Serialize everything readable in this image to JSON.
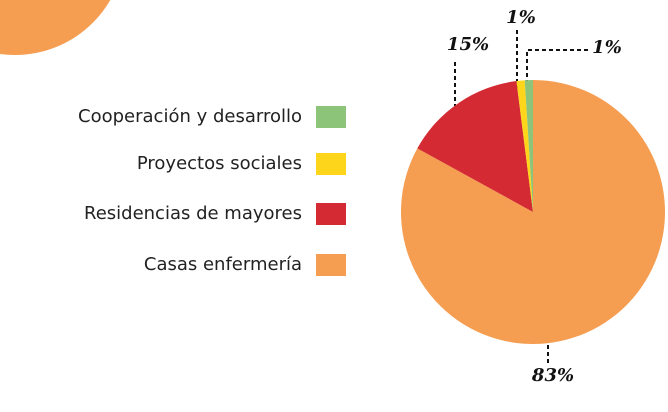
{
  "chart_data": {
    "type": "pie",
    "categories": [
      "Cooperación y desarrollo",
      "Proyectos sociales",
      "Residencias de mayores",
      "Casas enfermería"
    ],
    "values": [
      1,
      1,
      15,
      83
    ],
    "value_labels": [
      "1%",
      "1%",
      "15%",
      "83%"
    ],
    "colors": [
      "#8cc47a",
      "#fdd51a",
      "#d42a33",
      "#f59d51"
    ],
    "legend": "left"
  }
}
